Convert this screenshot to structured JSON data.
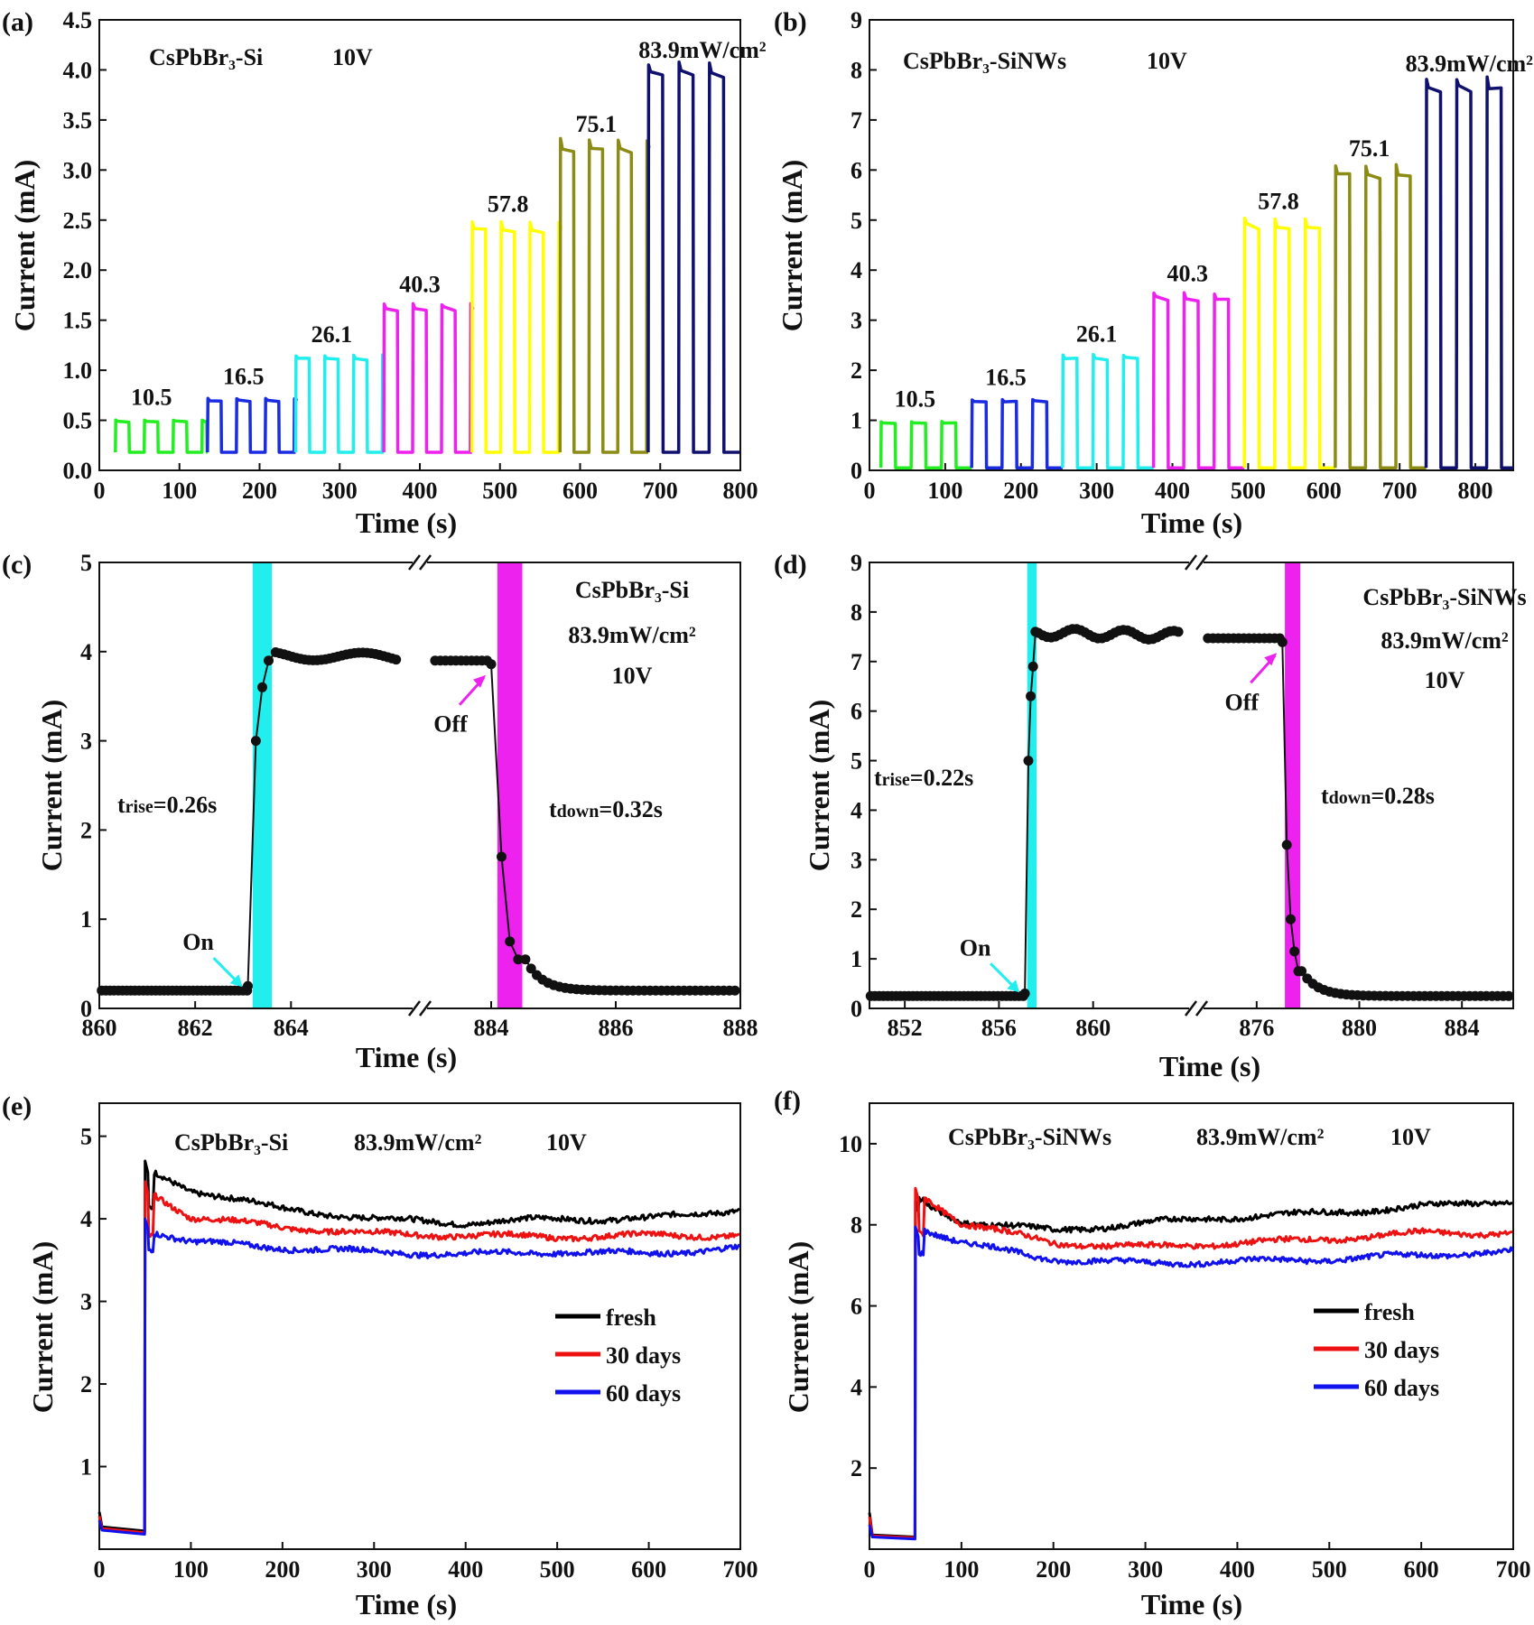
{
  "chart_data": [
    {
      "id": "a",
      "type": "line",
      "panel_label": "(a)",
      "title_lines": [
        [
          "CsPbBr₃-Si",
          "10V"
        ]
      ],
      "xlabel": "Time (s)",
      "ylabel": "Current (mA)",
      "xlim": [
        0,
        800
      ],
      "ylim": [
        0,
        4.5
      ],
      "xticks": [
        0,
        100,
        200,
        300,
        400,
        500,
        600,
        700,
        800
      ],
      "yticks": [
        0.0,
        0.5,
        1.0,
        1.5,
        2.0,
        2.5,
        3.0,
        3.5,
        4.0,
        4.5
      ],
      "ytick_labels": [
        "0.0",
        "0.5",
        "1.0",
        "1.5",
        "2.0",
        "2.5",
        "3.0",
        "3.5",
        "4.0",
        "4.5"
      ],
      "base": 0.18,
      "segments": [
        {
          "label": "10.5",
          "color": "#22ee22",
          "start": 20,
          "end": 135,
          "on": 0.49,
          "period": 36
        },
        {
          "label": "16.5",
          "color": "#1a2be0",
          "start": 135,
          "end": 245,
          "on": 0.7,
          "period": 36
        },
        {
          "label": "26.1",
          "color": "#22eeee",
          "start": 245,
          "end": 355,
          "on": 1.12,
          "period": 36
        },
        {
          "label": "40.3",
          "color": "#ee22ee",
          "start": 355,
          "end": 465,
          "on": 1.62,
          "period": 36
        },
        {
          "label": "57.8",
          "color": "#ffff00",
          "start": 465,
          "end": 575,
          "on": 2.42,
          "period": 36
        },
        {
          "label": "75.1",
          "color": "#8c8c14",
          "start": 575,
          "end": 685,
          "on": 3.22,
          "period": 36
        },
        {
          "label": "83.9mW/cm²",
          "color": "#10106e",
          "start": 685,
          "end": 800,
          "on": 3.96,
          "period": 38
        }
      ]
    },
    {
      "id": "b",
      "type": "line",
      "panel_label": "(b)",
      "title_lines": [
        [
          "CsPbBr₃-SiNWs",
          "10V"
        ]
      ],
      "xlabel": "Time (s)",
      "ylabel": "Current (mA)",
      "xlim": [
        0,
        850
      ],
      "ylim": [
        0,
        9
      ],
      "xticks": [
        0,
        100,
        200,
        300,
        400,
        500,
        600,
        700,
        800
      ],
      "yticks": [
        0,
        1,
        2,
        3,
        4,
        5,
        6,
        7,
        8,
        9
      ],
      "ytick_labels": [
        "0",
        "1",
        "2",
        "3",
        "4",
        "5",
        "6",
        "7",
        "8",
        "9"
      ],
      "base": 0.05,
      "segments": [
        {
          "label": "10.5",
          "color": "#22ee22",
          "start": 15,
          "end": 135,
          "on": 0.95,
          "period": 40
        },
        {
          "label": "16.5",
          "color": "#1a2be0",
          "start": 135,
          "end": 255,
          "on": 1.38,
          "period": 40
        },
        {
          "label": "26.1",
          "color": "#22eeee",
          "start": 255,
          "end": 375,
          "on": 2.25,
          "period": 40
        },
        {
          "label": "40.3",
          "color": "#ee22ee",
          "start": 375,
          "end": 495,
          "on": 3.45,
          "period": 40
        },
        {
          "label": "57.8",
          "color": "#ffff00",
          "start": 495,
          "end": 615,
          "on": 4.9,
          "period": 40
        },
        {
          "label": "75.1",
          "color": "#8c8c14",
          "start": 615,
          "end": 735,
          "on": 5.95,
          "period": 40
        },
        {
          "label": "83.9mW/cm²",
          "color": "#10106e",
          "start": 735,
          "end": 850,
          "on": 7.65,
          "period": 40
        }
      ]
    },
    {
      "id": "c",
      "type": "scatter",
      "panel_label": "(c)",
      "title_lines": [
        [
          "CsPbBr₃-Si"
        ],
        [
          "83.9mW/cm²"
        ],
        [
          "10V"
        ]
      ],
      "xlabel": "Time (s)",
      "ylabel": "Current (mA)",
      "xtick_labels": [
        "860",
        "862",
        "864",
        "884",
        "886",
        "888"
      ],
      "left_range": [
        860,
        866.5
      ],
      "right_range": [
        883,
        888
      ],
      "ylim": [
        0,
        5
      ],
      "yticks": [
        0,
        1,
        2,
        3,
        4,
        5
      ],
      "ytick_labels": [
        "0",
        "1",
        "2",
        "3",
        "4",
        "5"
      ],
      "base": 0.2,
      "peak": 4.02,
      "rise_time_s": 863.1,
      "rise_points": [
        3.0,
        3.6,
        3.9
      ],
      "fall_time_s": 884.0,
      "fall_points": [
        1.7,
        0.75,
        0.55
      ],
      "end_level": 0.2,
      "rise_band": [
        863.2,
        863.6
      ],
      "fall_band": [
        884.1,
        884.5
      ],
      "on_label": "On",
      "off_label": "Off",
      "rise_label": "t",
      "rise_sub": "rise",
      "rise_value": "=0.26s",
      "down_label": "t",
      "down_sub": "down",
      "down_value": "=0.32s"
    },
    {
      "id": "d",
      "type": "scatter",
      "panel_label": "(d)",
      "title_lines": [
        [
          "CsPbBr₃-SiNWs"
        ],
        [
          "83.9mW/cm²"
        ],
        [
          "10V"
        ]
      ],
      "xlabel": "Time (s)",
      "ylabel": "Current (mA)",
      "xtick_labels": [
        "852",
        "856",
        "860",
        "876",
        "880",
        "884"
      ],
      "left_range": [
        850.5,
        864
      ],
      "right_range": [
        874,
        886
      ],
      "ylim": [
        0,
        9
      ],
      "yticks": [
        0,
        1,
        2,
        3,
        4,
        5,
        6,
        7,
        8,
        9
      ],
      "ytick_labels": [
        "0",
        "1",
        "2",
        "3",
        "4",
        "5",
        "6",
        "7",
        "8",
        "9"
      ],
      "base": 0.25,
      "peak": 7.7,
      "rise_time_s": 857.1,
      "rise_points": [
        5.0,
        6.3,
        6.9,
        7.6
      ],
      "fall_time_s": 877.0,
      "fall_points": [
        3.3,
        1.8,
        1.15,
        0.75
      ],
      "end_level": 0.25,
      "rise_band": [
        857.2,
        857.6
      ],
      "fall_band": [
        877.1,
        877.7
      ],
      "on_label": "On",
      "off_label": "Off",
      "rise_label": "t",
      "rise_sub": "rise",
      "rise_value": "=0.22s",
      "down_label": "t",
      "down_sub": "down",
      "down_value": "=0.28s"
    },
    {
      "id": "e",
      "type": "line",
      "panel_label": "(e)",
      "title_lines": [
        [
          "CsPbBr₃-Si",
          "83.9mW/cm²",
          "10V"
        ]
      ],
      "xlabel": "Time (s)",
      "ylabel": "Current (mA)",
      "xlim": [
        0,
        700
      ],
      "ylim": [
        0,
        5.4
      ],
      "xticks": [
        0,
        100,
        200,
        300,
        400,
        500,
        600,
        700
      ],
      "yticks": [
        1,
        2,
        3,
        4,
        5
      ],
      "ytick_labels": [
        "1",
        "2",
        "3",
        "4",
        "5"
      ],
      "switch_on_s": 50,
      "legend_position": "right-middle",
      "series": [
        {
          "name": "fresh",
          "color": "#000000",
          "initial": 0.45,
          "off": 0.22,
          "peak": 4.7,
          "values_at_x": [
            [
              60,
              4.55
            ],
            [
              100,
              4.35
            ],
            [
              200,
              4.12
            ],
            [
              300,
              4.0
            ],
            [
              400,
              3.95
            ],
            [
              500,
              4.0
            ],
            [
              600,
              4.0
            ],
            [
              700,
              4.12
            ]
          ]
        },
        {
          "name": "30 days",
          "color": "#ee1111",
          "initial": 0.4,
          "off": 0.2,
          "peak": 4.45,
          "values_at_x": [
            [
              60,
              4.3
            ],
            [
              100,
              4.02
            ],
            [
              200,
              3.9
            ],
            [
              300,
              3.82
            ],
            [
              400,
              3.8
            ],
            [
              500,
              3.78
            ],
            [
              600,
              3.8
            ],
            [
              700,
              3.8
            ]
          ]
        },
        {
          "name": "60 days",
          "color": "#1111ee",
          "initial": 0.35,
          "off": 0.18,
          "peak": 4.0,
          "values_at_x": [
            [
              60,
              3.85
            ],
            [
              100,
              3.72
            ],
            [
              200,
              3.65
            ],
            [
              300,
              3.6
            ],
            [
              400,
              3.57
            ],
            [
              500,
              3.6
            ],
            [
              600,
              3.58
            ],
            [
              700,
              3.65
            ]
          ]
        }
      ]
    },
    {
      "id": "f",
      "type": "line",
      "panel_label": "(f)",
      "title_lines": [
        [
          "CsPbBr₃-SiNWs",
          "83.9mW/cm²",
          "10V"
        ]
      ],
      "xlabel": "Time (s)",
      "ylabel": "Current (mA)",
      "xlim": [
        0,
        700
      ],
      "ylim": [
        0,
        11
      ],
      "xticks": [
        0,
        100,
        200,
        300,
        400,
        500,
        600,
        700
      ],
      "yticks": [
        2,
        4,
        6,
        8,
        10
      ],
      "ytick_labels": [
        "2",
        "4",
        "6",
        "8",
        "10"
      ],
      "switch_on_s": 50,
      "legend_position": "right-middle",
      "series": [
        {
          "name": "fresh",
          "color": "#000000",
          "initial": 0.9,
          "off": 0.3,
          "peak": 8.6,
          "values_at_x": [
            [
              60,
              8.5
            ],
            [
              100,
              8.1
            ],
            [
              200,
              7.85
            ],
            [
              300,
              8.05
            ],
            [
              400,
              8.2
            ],
            [
              500,
              8.3
            ],
            [
              600,
              8.45
            ],
            [
              700,
              8.6
            ]
          ]
        },
        {
          "name": "30 days",
          "color": "#ee1111",
          "initial": 0.8,
          "off": 0.28,
          "peak": 8.9,
          "values_at_x": [
            [
              60,
              8.7
            ],
            [
              100,
              8.05
            ],
            [
              200,
              7.55
            ],
            [
              300,
              7.45
            ],
            [
              400,
              7.55
            ],
            [
              500,
              7.65
            ],
            [
              600,
              7.8
            ],
            [
              700,
              7.8
            ]
          ]
        },
        {
          "name": "60 days",
          "color": "#1111ee",
          "initial": 0.6,
          "off": 0.25,
          "peak": 7.95,
          "values_at_x": [
            [
              60,
              7.9
            ],
            [
              100,
              7.55
            ],
            [
              200,
              7.15
            ],
            [
              300,
              7.05
            ],
            [
              400,
              7.1
            ],
            [
              500,
              7.15
            ],
            [
              600,
              7.25
            ],
            [
              700,
              7.35
            ]
          ]
        }
      ]
    }
  ]
}
